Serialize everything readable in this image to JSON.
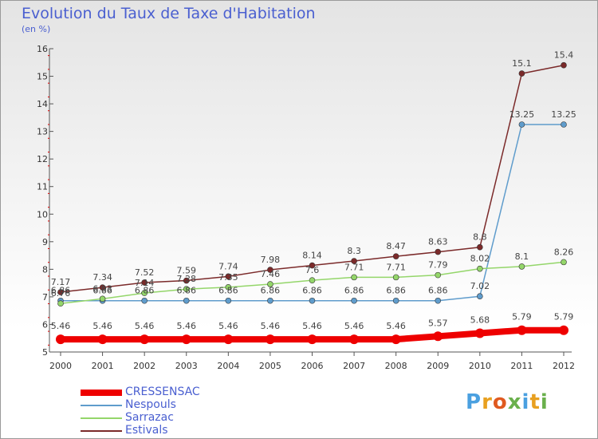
{
  "chart_data": {
    "type": "line",
    "title": "Evolution du Taux de Taxe d'Habitation",
    "subtitle": "(en %)",
    "categories": [
      "2000",
      "2001",
      "2002",
      "2003",
      "2004",
      "2005",
      "2006",
      "2007",
      "2008",
      "2009",
      "2010",
      "2011",
      "2012"
    ],
    "ylim": [
      5,
      16
    ],
    "yticks": [
      "5",
      "6",
      "7",
      "8",
      "9",
      "10",
      "11",
      "12",
      "13",
      "14",
      "15",
      "16"
    ],
    "grid": false,
    "legend_placement": "bottom-left",
    "series": [
      {
        "name": "CRESSENSAC",
        "color": "#ee0000",
        "values": [
          5.46,
          5.46,
          5.46,
          5.46,
          5.46,
          5.46,
          5.46,
          5.46,
          5.46,
          5.57,
          5.68,
          5.79,
          5.79
        ],
        "labels": [
          "5.46",
          "5.46",
          "5.46",
          "5.46",
          "5.46",
          "5.46",
          "5.46",
          "5.46",
          "5.46",
          "5.57",
          "5.68",
          "5.79",
          "5.79"
        ]
      },
      {
        "name": "Nespouls",
        "color": "#5f9ccc",
        "values": [
          6.86,
          6.86,
          6.86,
          6.86,
          6.86,
          6.86,
          6.86,
          6.86,
          6.86,
          6.86,
          7.02,
          13.25,
          13.25
        ],
        "labels": [
          "6.86",
          "6.86",
          "6.86",
          "6.86",
          "6.86",
          "6.86",
          "6.86",
          "6.86",
          "6.86",
          "6.86",
          "7.02",
          "13.25",
          "13.25"
        ]
      },
      {
        "name": "Sarrazac",
        "color": "#94d66a",
        "values": [
          6.76,
          6.93,
          7.14,
          7.28,
          7.35,
          7.46,
          7.6,
          7.71,
          7.71,
          7.79,
          8.02,
          8.1,
          8.26
        ],
        "labels": [
          "6.76",
          "6.93",
          "7.14",
          "7.28",
          "7.35",
          "7.46",
          "7.6",
          "7.71",
          "7.71",
          "7.79",
          "8.02",
          "8.1",
          "8.26"
        ]
      },
      {
        "name": "Estivals",
        "color": "#7b2a2a",
        "values": [
          7.17,
          7.34,
          7.52,
          7.59,
          7.74,
          7.98,
          8.14,
          8.3,
          8.47,
          8.63,
          8.8,
          15.1,
          15.4
        ],
        "labels": [
          "7.17",
          "7.34",
          "7.52",
          "7.59",
          "7.74",
          "7.98",
          "8.14",
          "8.3",
          "8.47",
          "8.63",
          "8.8",
          "15.1",
          "15.4"
        ]
      }
    ]
  },
  "logo_text": "Proxiti"
}
